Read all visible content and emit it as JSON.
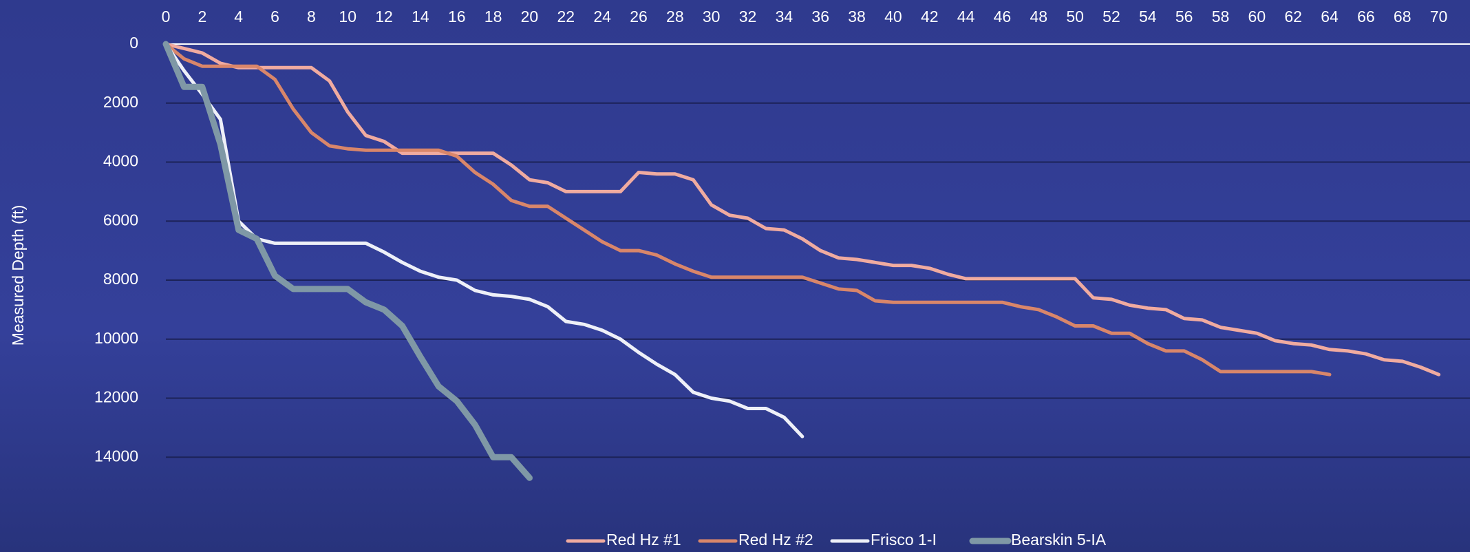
{
  "chart_data": {
    "type": "line",
    "y_label": "Measured Depth (ft)",
    "x_axis_position": "top",
    "y_inverted": true,
    "grid": true,
    "legend": "bottom",
    "xlim": [
      0,
      71
    ],
    "xticks": [
      0,
      2,
      4,
      6,
      8,
      10,
      12,
      14,
      16,
      18,
      20,
      22,
      24,
      26,
      28,
      30,
      32,
      34,
      36,
      38,
      40,
      42,
      44,
      46,
      48,
      50,
      52,
      54,
      56,
      58,
      60,
      62,
      64,
      66,
      68,
      70
    ],
    "ylim": [
      0,
      16000
    ],
    "yticks": [
      0,
      2000,
      4000,
      6000,
      8000,
      10000,
      12000,
      14000
    ],
    "series": [
      {
        "name": "Red Hz #1",
        "color": "#f0aba0",
        "width": 5,
        "x": [
          0,
          1,
          2,
          3,
          4,
          5,
          6,
          7,
          8,
          9,
          10,
          11,
          12,
          13,
          14,
          15,
          16,
          17,
          18,
          19,
          20,
          21,
          22,
          23,
          24,
          25,
          26,
          27,
          28,
          29,
          30,
          31,
          32,
          33,
          34,
          35,
          36,
          37,
          38,
          39,
          40,
          41,
          42,
          43,
          44,
          45,
          46,
          47,
          48,
          49,
          50,
          51,
          52,
          53,
          54,
          55,
          56,
          57,
          58,
          59,
          60,
          61,
          62,
          63,
          64,
          65,
          66,
          67,
          68,
          69,
          70
        ],
        "values": [
          0,
          150,
          300,
          650,
          800,
          800,
          800,
          800,
          800,
          1250,
          2300,
          3100,
          3300,
          3700,
          3700,
          3700,
          3700,
          3700,
          3700,
          4100,
          4600,
          4700,
          5000,
          5000,
          5000,
          5000,
          4350,
          4400,
          4400,
          4600,
          5450,
          5800,
          5900,
          6250,
          6300,
          6600,
          7000,
          7250,
          7300,
          7400,
          7500,
          7500,
          7600,
          7800,
          7950,
          7950,
          7950,
          7950,
          7950,
          7950,
          7950,
          8600,
          8650,
          8850,
          8950,
          9000,
          9300,
          9350,
          9600,
          9700,
          9800,
          10050,
          10150,
          10200,
          10350,
          10400,
          10500,
          10700,
          10750,
          10950,
          11200
        ]
      },
      {
        "name": "Red Hz #2",
        "color": "#d9866a",
        "width": 5,
        "x": [
          0,
          1,
          2,
          3,
          4,
          5,
          6,
          7,
          8,
          9,
          10,
          11,
          12,
          13,
          14,
          15,
          16,
          17,
          18,
          19,
          20,
          21,
          22,
          23,
          24,
          25,
          26,
          27,
          28,
          29,
          30,
          31,
          32,
          33,
          34,
          35,
          36,
          37,
          38,
          39,
          40,
          41,
          42,
          43,
          44,
          45,
          46,
          47,
          48,
          49,
          50,
          51,
          52,
          53,
          54,
          55,
          56,
          57,
          58,
          59,
          60,
          61,
          62,
          63,
          64
        ],
        "values": [
          0,
          500,
          750,
          750,
          750,
          750,
          1200,
          2200,
          3000,
          3450,
          3550,
          3600,
          3600,
          3600,
          3600,
          3600,
          3800,
          4350,
          4750,
          5300,
          5500,
          5500,
          5900,
          6300,
          6700,
          7000,
          7000,
          7150,
          7450,
          7700,
          7900,
          7900,
          7900,
          7900,
          7900,
          7900,
          8100,
          8300,
          8350,
          8700,
          8750,
          8750,
          8750,
          8750,
          8750,
          8750,
          8750,
          8900,
          9000,
          9250,
          9550,
          9550,
          9800,
          9800,
          10150,
          10400,
          10400,
          10700,
          11100,
          11100,
          11100,
          11100,
          11100,
          11100,
          11200
        ]
      },
      {
        "name": "Frisco 1-I",
        "color": "#eef0f8",
        "width": 5,
        "x": [
          0,
          1,
          2,
          3,
          4,
          5,
          6,
          7,
          8,
          9,
          10,
          11,
          12,
          13,
          14,
          15,
          16,
          17,
          18,
          19,
          20,
          21,
          22,
          23,
          24,
          25,
          26,
          27,
          28,
          29,
          30,
          31,
          32,
          33,
          34,
          35
        ],
        "values": [
          0,
          900,
          1700,
          2550,
          6000,
          6600,
          6750,
          6750,
          6750,
          6750,
          6750,
          6750,
          7050,
          7400,
          7700,
          7900,
          8000,
          8350,
          8500,
          8550,
          8650,
          8900,
          9400,
          9500,
          9700,
          10000,
          10450,
          10850,
          11200,
          11800,
          12000,
          12100,
          12350,
          12350,
          12650,
          13300
        ]
      },
      {
        "name": "Bearskin 5-IA",
        "color": "#7f98a6",
        "width": 9,
        "x": [
          0,
          1,
          2,
          3,
          4,
          5,
          6,
          7,
          8,
          9,
          10,
          11,
          12,
          13,
          14,
          15,
          16,
          17,
          18,
          19,
          20
        ],
        "values": [
          0,
          1450,
          1450,
          3400,
          6300,
          6600,
          7850,
          8300,
          8300,
          8300,
          8300,
          8750,
          9000,
          9550,
          10600,
          11600,
          12100,
          12900,
          14000,
          14000,
          14700
        ]
      }
    ]
  }
}
